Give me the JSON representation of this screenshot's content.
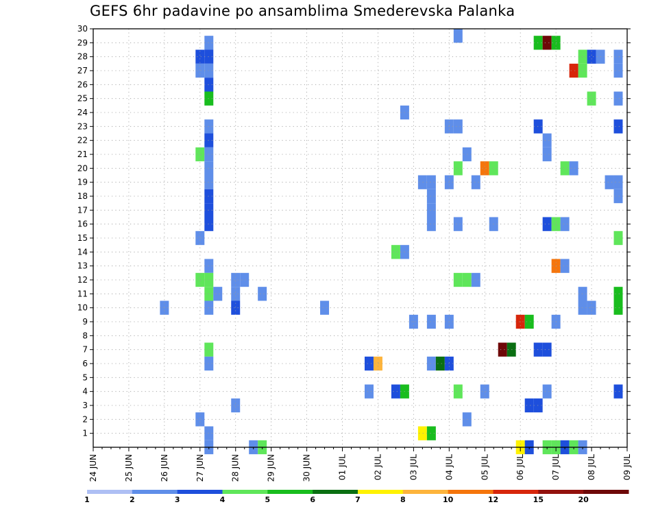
{
  "chart_data": {
    "type": "heatmap",
    "title": "GEFS 6hr padavine po ansamblima Smederevska Palanka",
    "y_ticks": [
      1,
      2,
      3,
      4,
      5,
      6,
      7,
      8,
      9,
      10,
      11,
      12,
      13,
      14,
      15,
      16,
      17,
      18,
      19,
      20,
      21,
      22,
      23,
      24,
      25,
      26,
      27,
      28,
      29,
      30
    ],
    "ylim": [
      0,
      30
    ],
    "x_ticks": [
      "24 JUN",
      "25 JUN",
      "26 JUN",
      "27 JUN",
      "28 JUN",
      "29 JUN",
      "30 JUN",
      "01 JUL",
      "02 JUL",
      "03 JUL",
      "04 JUL",
      "05 JUL",
      "06 JUL",
      "07 JUL",
      "08 JUL",
      "09 JUL"
    ],
    "x_step_unit": "6h",
    "x_steps_total": 60,
    "grid": true,
    "legend": {
      "position": "bottom",
      "labels": [
        "1",
        "2",
        "3",
        "4",
        "5",
        "6",
        "7",
        "8",
        "10",
        "12",
        "15",
        "20"
      ],
      "colors": [
        "#aebff4",
        "#5f8ee9",
        "#1e4fdc",
        "#5fe65a",
        "#19bd1e",
        "#0a6f12",
        "#fff200",
        "#fdb43c",
        "#f5750c",
        "#d7260b",
        "#93110d",
        "#6e0808"
      ]
    },
    "cells": [
      {
        "t": 13,
        "m": 29,
        "c": 1
      },
      {
        "t": 13,
        "m": 28,
        "c": 2
      },
      {
        "t": 12,
        "m": 28,
        "c": 2
      },
      {
        "t": 12,
        "m": 27,
        "c": 1
      },
      {
        "t": 13,
        "m": 27,
        "c": 1
      },
      {
        "t": 13,
        "m": 26,
        "c": 2
      },
      {
        "t": 13,
        "m": 25,
        "c": 4
      },
      {
        "t": 13,
        "m": 23,
        "c": 1
      },
      {
        "t": 13,
        "m": 22,
        "c": 2
      },
      {
        "t": 12,
        "m": 21,
        "c": 3
      },
      {
        "t": 13,
        "m": 21,
        "c": 1
      },
      {
        "t": 13,
        "m": 20,
        "c": 1
      },
      {
        "t": 13,
        "m": 19,
        "c": 1
      },
      {
        "t": 13,
        "m": 18,
        "c": 2
      },
      {
        "t": 13,
        "m": 17,
        "c": 2
      },
      {
        "t": 13,
        "m": 16,
        "c": 2
      },
      {
        "t": 12,
        "m": 15,
        "c": 1
      },
      {
        "t": 13,
        "m": 13,
        "c": 1
      },
      {
        "t": 12,
        "m": 12,
        "c": 3
      },
      {
        "t": 13,
        "m": 12,
        "c": 3
      },
      {
        "t": 13,
        "m": 11,
        "c": 3
      },
      {
        "t": 14,
        "m": 11,
        "c": 1
      },
      {
        "t": 13,
        "m": 10,
        "c": 1
      },
      {
        "t": 13,
        "m": 7,
        "c": 3
      },
      {
        "t": 13,
        "m": 6,
        "c": 1
      },
      {
        "t": 12,
        "m": 2,
        "c": 1
      },
      {
        "t": 13,
        "m": 1,
        "c": 1
      },
      {
        "t": 13,
        "m": 0,
        "c": 1
      },
      {
        "t": 16,
        "m": 12,
        "c": 1
      },
      {
        "t": 17,
        "m": 12,
        "c": 1
      },
      {
        "t": 16,
        "m": 11,
        "c": 1
      },
      {
        "t": 16,
        "m": 10,
        "c": 2
      },
      {
        "t": 16,
        "m": 3,
        "c": 1
      },
      {
        "t": 19,
        "m": 11,
        "c": 1
      },
      {
        "t": 18,
        "m": 0,
        "c": 1
      },
      {
        "t": 19,
        "m": 0,
        "c": 3
      },
      {
        "t": 8,
        "m": 10,
        "c": 1
      },
      {
        "t": 26,
        "m": 10,
        "c": 1
      },
      {
        "t": 31,
        "m": 6,
        "c": 2
      },
      {
        "t": 32,
        "m": 6,
        "c": 7
      },
      {
        "t": 31,
        "m": 4,
        "c": 1
      },
      {
        "t": 35,
        "m": 24,
        "c": 1
      },
      {
        "t": 35,
        "m": 14,
        "c": 1
      },
      {
        "t": 34,
        "m": 14,
        "c": 3
      },
      {
        "t": 34,
        "m": 4,
        "c": 2
      },
      {
        "t": 35,
        "m": 4,
        "c": 4
      },
      {
        "t": 36,
        "m": 9,
        "c": 1
      },
      {
        "t": 37,
        "m": 1,
        "c": 6
      },
      {
        "t": 38,
        "m": 1,
        "c": 4
      },
      {
        "t": 37,
        "m": 19,
        "c": 1
      },
      {
        "t": 38,
        "m": 19,
        "c": 1
      },
      {
        "t": 38,
        "m": 18,
        "c": 1
      },
      {
        "t": 38,
        "m": 17,
        "c": 1
      },
      {
        "t": 38,
        "m": 16,
        "c": 1
      },
      {
        "t": 38,
        "m": 9,
        "c": 1
      },
      {
        "t": 38,
        "m": 6,
        "c": 1
      },
      {
        "t": 39,
        "m": 6,
        "c": 5
      },
      {
        "t": 40,
        "m": 6,
        "c": 2
      },
      {
        "t": 40,
        "m": 19,
        "c": 1
      },
      {
        "t": 40,
        "m": 9,
        "c": 1
      },
      {
        "t": 40,
        "m": 23,
        "c": 1
      },
      {
        "t": 41,
        "m": 23,
        "c": 1
      },
      {
        "t": 41,
        "m": 16,
        "c": 1
      },
      {
        "t": 41,
        "m": 12,
        "c": 3
      },
      {
        "t": 42,
        "m": 12,
        "c": 3
      },
      {
        "t": 41,
        "m": 20,
        "c": 3
      },
      {
        "t": 41,
        "m": 4,
        "c": 3
      },
      {
        "t": 42,
        "m": 21,
        "c": 1
      },
      {
        "t": 42,
        "m": 2,
        "c": 1
      },
      {
        "t": 43,
        "m": 12,
        "c": 1
      },
      {
        "t": 41,
        "m": 30,
        "c": 1
      },
      {
        "t": 43,
        "m": 19,
        "c": 1
      },
      {
        "t": 44,
        "m": 20,
        "c": 8
      },
      {
        "t": 45,
        "m": 20,
        "c": 3
      },
      {
        "t": 44,
        "m": 4,
        "c": 1
      },
      {
        "t": 45,
        "m": 16,
        "c": 1
      },
      {
        "t": 46,
        "m": 7,
        "c": 11
      },
      {
        "t": 47,
        "m": 7,
        "c": 5
      },
      {
        "t": 48,
        "m": 9,
        "c": 9
      },
      {
        "t": 49,
        "m": 9,
        "c": 4
      },
      {
        "t": 48,
        "m": 0,
        "c": 6
      },
      {
        "t": 49,
        "m": 0,
        "c": 2
      },
      {
        "t": 49,
        "m": 3,
        "c": 2
      },
      {
        "t": 50,
        "m": 3,
        "c": 2
      },
      {
        "t": 50,
        "m": 23,
        "c": 2
      },
      {
        "t": 50,
        "m": 7,
        "c": 2
      },
      {
        "t": 51,
        "m": 7,
        "c": 2
      },
      {
        "t": 50,
        "m": 29,
        "c": 4
      },
      {
        "t": 51,
        "m": 29,
        "c": 11
      },
      {
        "t": 52,
        "m": 29,
        "c": 4
      },
      {
        "t": 51,
        "m": 22,
        "c": 1
      },
      {
        "t": 51,
        "m": 21,
        "c": 1
      },
      {
        "t": 51,
        "m": 16,
        "c": 2
      },
      {
        "t": 52,
        "m": 16,
        "c": 3
      },
      {
        "t": 53,
        "m": 16,
        "c": 1
      },
      {
        "t": 52,
        "m": 13,
        "c": 8
      },
      {
        "t": 53,
        "m": 13,
        "c": 1
      },
      {
        "t": 53,
        "m": 20,
        "c": 3
      },
      {
        "t": 54,
        "m": 20,
        "c": 1
      },
      {
        "t": 51,
        "m": 4,
        "c": 1
      },
      {
        "t": 52,
        "m": 9,
        "c": 1
      },
      {
        "t": 51,
        "m": 0,
        "c": 3
      },
      {
        "t": 52,
        "m": 0,
        "c": 3
      },
      {
        "t": 53,
        "m": 0,
        "c": 2
      },
      {
        "t": 54,
        "m": 0,
        "c": 3
      },
      {
        "t": 55,
        "m": 0,
        "c": 1
      },
      {
        "t": 55,
        "m": 28,
        "c": 3
      },
      {
        "t": 56,
        "m": 28,
        "c": 2
      },
      {
        "t": 57,
        "m": 28,
        "c": 1
      },
      {
        "t": 54,
        "m": 27,
        "c": 9
      },
      {
        "t": 55,
        "m": 27,
        "c": 3
      },
      {
        "t": 56,
        "m": 25,
        "c": 3
      },
      {
        "t": 55,
        "m": 11,
        "c": 1
      },
      {
        "t": 55,
        "m": 10,
        "c": 1
      },
      {
        "t": 56,
        "m": 10,
        "c": 1
      },
      {
        "t": 59,
        "m": 28,
        "c": 1
      },
      {
        "t": 59,
        "m": 27,
        "c": 1
      },
      {
        "t": 59,
        "m": 25,
        "c": 1
      },
      {
        "t": 59,
        "m": 23,
        "c": 2
      },
      {
        "t": 58,
        "m": 19,
        "c": 1
      },
      {
        "t": 59,
        "m": 19,
        "c": 1
      },
      {
        "t": 59,
        "m": 18,
        "c": 1
      },
      {
        "t": 59,
        "m": 15,
        "c": 3
      },
      {
        "t": 59,
        "m": 11,
        "c": 4
      },
      {
        "t": 59,
        "m": 10,
        "c": 4
      },
      {
        "t": 59,
        "m": 4,
        "c": 2
      }
    ]
  }
}
